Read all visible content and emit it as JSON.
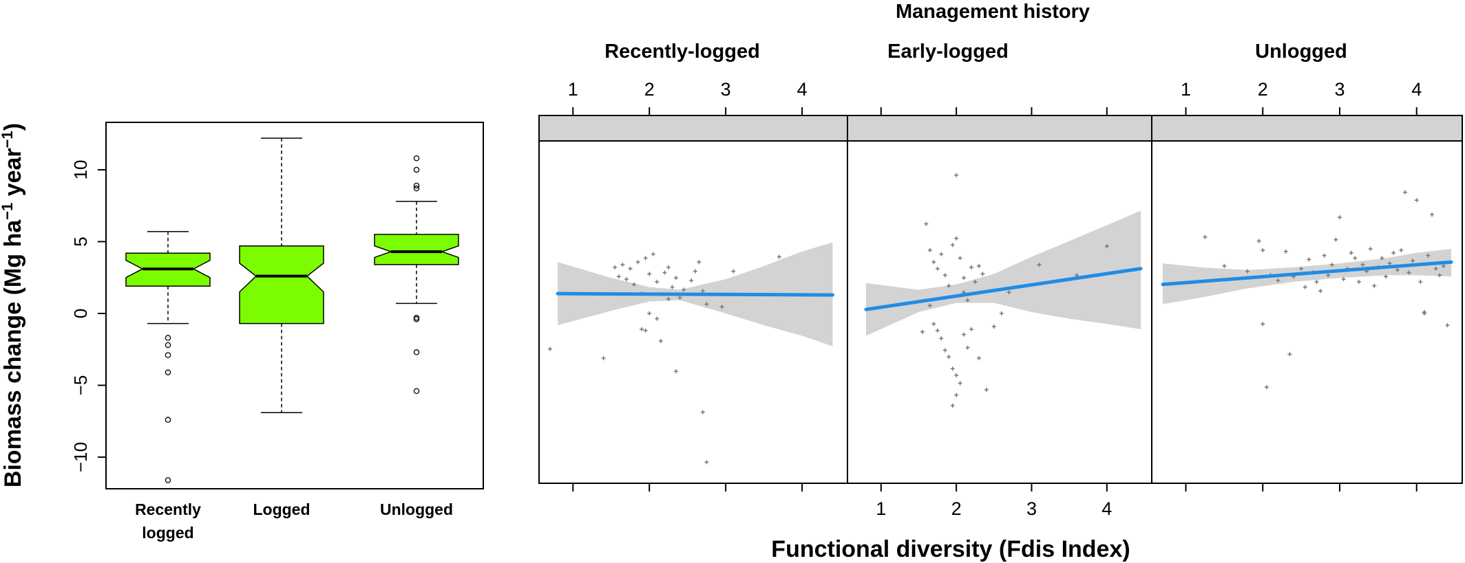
{
  "chart_data": [
    {
      "type": "boxplot",
      "notched": true,
      "ylabel": "Biomass change (Mg ha⁻¹ year⁻¹)",
      "yticks": [
        -10,
        -5,
        0,
        5,
        10
      ],
      "ylim": [
        -12.2,
        13.3
      ],
      "fill_color": "#7cfc00",
      "categories": [
        {
          "label_lines": [
            "Recently",
            "logged"
          ],
          "whisker_low": -0.7,
          "q1": 1.9,
          "median": 3.1,
          "q3": 4.2,
          "whisker_high": 5.7,
          "notch": [
            2.5,
            3.7
          ],
          "outliers": [
            -1.7,
            -2.2,
            -2.9,
            -4.1,
            -7.4,
            -11.6
          ]
        },
        {
          "label_lines": [
            "Logged"
          ],
          "whisker_low": -6.9,
          "q1": -0.7,
          "median": 2.6,
          "q3": 4.7,
          "whisker_high": 12.2,
          "notch": [
            1.5,
            3.5
          ],
          "outliers": []
        },
        {
          "label_lines": [
            "Unlogged"
          ],
          "whisker_low": 0.7,
          "q1": 3.4,
          "median": 4.3,
          "q3": 5.5,
          "whisker_high": 7.8,
          "notch": [
            3.9,
            4.7
          ],
          "outliers": [
            -0.3,
            -0.4,
            -2.7,
            -5.4,
            8.7,
            8.9,
            10.0,
            10.8
          ]
        }
      ]
    },
    {
      "type": "scatter",
      "title": "Management history",
      "xlabel": "Functional diversity (Fdis Index)",
      "xticks": [
        1,
        2,
        3,
        4
      ],
      "xlim": [
        0.7,
        4.45
      ],
      "ylim": [
        -12.5,
        13.5
      ],
      "fit_color": "#1f8ce6",
      "band_color": "#d3d3d3",
      "point_color": "#777777",
      "panels": [
        {
          "title": "Recently-logged",
          "fit": [
            [
              0.8,
              1.9
            ],
            [
              4.4,
              1.8
            ]
          ],
          "band": [
            [
              0.8,
              4.3,
              -0.5
            ],
            [
              1.5,
              3.1,
              0.6
            ],
            [
              2.0,
              2.4,
              1.3
            ],
            [
              2.4,
              2.2,
              1.4
            ],
            [
              3.0,
              3.0,
              0.4
            ],
            [
              3.5,
              4.0,
              -0.5
            ],
            [
              4.0,
              5.1,
              -1.3
            ],
            [
              4.4,
              5.8,
              -2.1
            ]
          ],
          "points": [
            [
              0.7,
              -2.3
            ],
            [
              1.4,
              -3.0
            ],
            [
              1.55,
              3.9
            ],
            [
              1.6,
              3.2
            ],
            [
              1.65,
              4.1
            ],
            [
              1.7,
              3.0
            ],
            [
              1.75,
              3.8
            ],
            [
              1.8,
              2.6
            ],
            [
              1.85,
              4.3
            ],
            [
              1.9,
              1.9
            ],
            [
              1.95,
              4.6
            ],
            [
              2.0,
              3.4
            ],
            [
              2.05,
              4.9
            ],
            [
              2.1,
              2.8
            ],
            [
              2.0,
              0.4
            ],
            [
              2.1,
              0.0
            ],
            [
              1.9,
              -0.8
            ],
            [
              1.95,
              -0.9
            ],
            [
              2.15,
              -1.7
            ],
            [
              2.2,
              3.5
            ],
            [
              2.25,
              3.9
            ],
            [
              2.35,
              3.1
            ],
            [
              2.3,
              2.4
            ],
            [
              2.4,
              1.6
            ],
            [
              2.35,
              -4.0
            ],
            [
              2.55,
              2.9
            ],
            [
              2.6,
              3.6
            ],
            [
              2.65,
              4.3
            ],
            [
              2.7,
              2.1
            ],
            [
              2.75,
              1.1
            ],
            [
              2.7,
              -7.1
            ],
            [
              2.75,
              -10.9
            ],
            [
              2.95,
              0.9
            ],
            [
              3.1,
              3.6
            ],
            [
              3.7,
              4.7
            ],
            [
              2.25,
              1.5
            ],
            [
              2.45,
              2.2
            ]
          ]
        },
        {
          "title": "Early-logged",
          "fit": [
            [
              0.8,
              0.7
            ],
            [
              4.45,
              3.8
            ]
          ],
          "band": [
            [
              0.8,
              2.7,
              -1.3
            ],
            [
              1.5,
              2.2,
              0.5
            ],
            [
              2.0,
              2.6,
              1.2
            ],
            [
              2.5,
              3.4,
              1.2
            ],
            [
              3.0,
              4.7,
              0.5
            ],
            [
              3.5,
              5.9,
              0.0
            ],
            [
              4.0,
              7.1,
              -0.4
            ],
            [
              4.45,
              8.2,
              -0.8
            ]
          ],
          "points": [
            [
              1.6,
              7.2
            ],
            [
              1.65,
              5.2
            ],
            [
              1.7,
              4.3
            ],
            [
              1.75,
              3.8
            ],
            [
              1.8,
              4.9
            ],
            [
              1.85,
              3.3
            ],
            [
              1.9,
              2.5
            ],
            [
              1.95,
              5.6
            ],
            [
              2.0,
              10.9
            ],
            [
              2.0,
              6.1
            ],
            [
              2.05,
              4.6
            ],
            [
              2.1,
              3.1
            ],
            [
              2.1,
              2.0
            ],
            [
              2.15,
              1.4
            ],
            [
              2.2,
              3.9
            ],
            [
              2.25,
              2.8
            ],
            [
              2.3,
              4.0
            ],
            [
              2.35,
              3.4
            ],
            [
              1.65,
              1.0
            ],
            [
              1.7,
              -0.4
            ],
            [
              1.75,
              -0.9
            ],
            [
              1.8,
              -1.5
            ],
            [
              1.85,
              -2.4
            ],
            [
              1.9,
              -2.9
            ],
            [
              1.95,
              -3.8
            ],
            [
              2.0,
              -4.3
            ],
            [
              2.05,
              -4.9
            ],
            [
              2.0,
              -5.8
            ],
            [
              1.95,
              -6.6
            ],
            [
              2.1,
              -1.2
            ],
            [
              2.15,
              -2.2
            ],
            [
              2.2,
              -0.8
            ],
            [
              2.3,
              -3.0
            ],
            [
              2.4,
              -5.4
            ],
            [
              2.5,
              -0.6
            ],
            [
              2.6,
              0.4
            ],
            [
              2.7,
              2.0
            ],
            [
              3.1,
              4.1
            ],
            [
              3.6,
              3.3
            ],
            [
              4.0,
              5.5
            ],
            [
              1.55,
              -1.0
            ]
          ]
        },
        {
          "title": "Unlogged",
          "fit": [
            [
              0.7,
              2.6
            ],
            [
              4.45,
              4.3
            ]
          ],
          "band": [
            [
              0.7,
              4.2,
              1.1
            ],
            [
              1.2,
              3.9,
              1.6
            ],
            [
              1.8,
              3.7,
              2.3
            ],
            [
              2.4,
              3.9,
              2.8
            ],
            [
              3.0,
              4.2,
              3.1
            ],
            [
              3.6,
              4.6,
              3.3
            ],
            [
              4.0,
              5.0,
              3.3
            ],
            [
              4.45,
              5.3,
              3.2
            ]
          ],
          "points": [
            [
              1.25,
              6.2
            ],
            [
              1.5,
              4.0
            ],
            [
              1.8,
              3.6
            ],
            [
              1.95,
              5.9
            ],
            [
              2.0,
              5.2
            ],
            [
              2.1,
              3.3
            ],
            [
              2.2,
              2.9
            ],
            [
              2.3,
              5.1
            ],
            [
              2.4,
              3.2
            ],
            [
              2.5,
              3.8
            ],
            [
              2.55,
              2.4
            ],
            [
              2.6,
              4.5
            ],
            [
              2.65,
              3.5
            ],
            [
              2.7,
              2.8
            ],
            [
              2.75,
              2.1
            ],
            [
              2.8,
              4.8
            ],
            [
              2.85,
              3.3
            ],
            [
              2.9,
              4.1
            ],
            [
              2.95,
              6.0
            ],
            [
              3.0,
              7.7
            ],
            [
              3.05,
              3.0
            ],
            [
              3.1,
              3.8
            ],
            [
              3.15,
              5.0
            ],
            [
              3.2,
              4.6
            ],
            [
              3.25,
              2.8
            ],
            [
              3.3,
              4.1
            ],
            [
              3.35,
              3.6
            ],
            [
              3.4,
              5.3
            ],
            [
              3.45,
              2.5
            ],
            [
              3.5,
              3.9
            ],
            [
              3.55,
              4.6
            ],
            [
              3.6,
              3.2
            ],
            [
              3.65,
              4.2
            ],
            [
              3.7,
              5.0
            ],
            [
              3.75,
              3.7
            ],
            [
              3.8,
              5.2
            ],
            [
              3.85,
              9.6
            ],
            [
              3.9,
              3.5
            ],
            [
              3.95,
              4.4
            ],
            [
              4.0,
              9.0
            ],
            [
              4.05,
              2.8
            ],
            [
              4.1,
              0.4
            ],
            [
              4.15,
              4.8
            ],
            [
              4.2,
              7.9
            ],
            [
              4.25,
              3.8
            ],
            [
              4.3,
              3.3
            ],
            [
              4.35,
              4.0
            ],
            [
              4.4,
              -0.5
            ],
            [
              4.1,
              0.5
            ],
            [
              2.05,
              -5.2
            ],
            [
              2.35,
              -2.7
            ],
            [
              2.0,
              -0.4
            ]
          ]
        }
      ]
    }
  ]
}
